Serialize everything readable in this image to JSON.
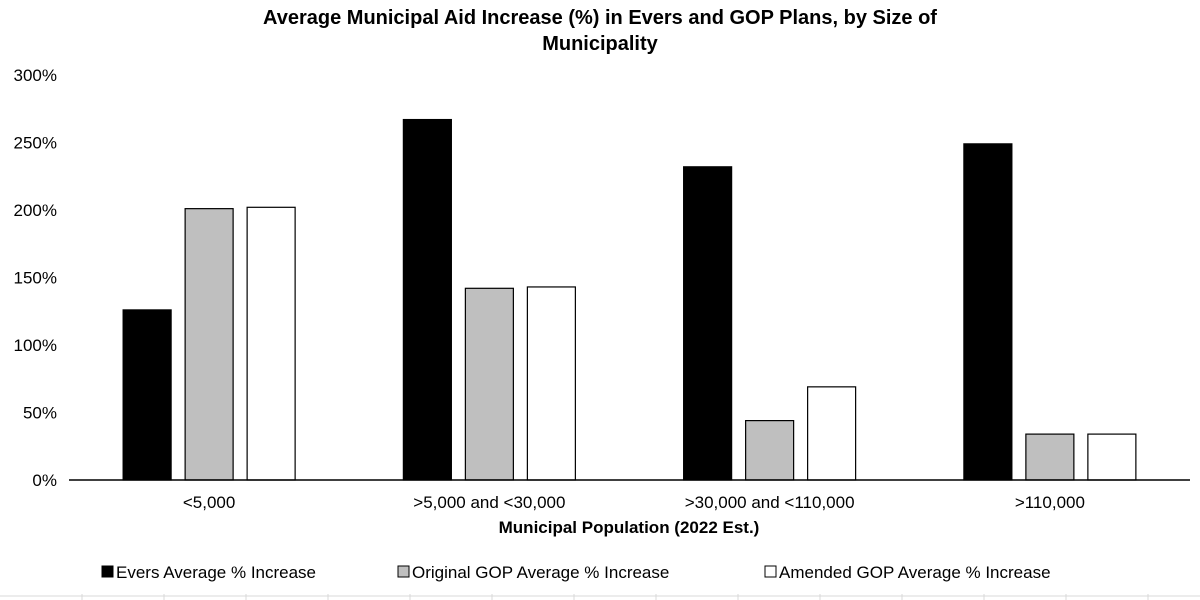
{
  "chart_data": {
    "type": "bar",
    "title_lines": [
      "Average Municipal Aid Increase (%) in Evers and GOP Plans, by Size of",
      "Municipality"
    ],
    "xlabel": "Municipal Population (2022 Est.)",
    "ylabel": "",
    "categories": [
      "<5,000",
      ">5,000 and <30,000",
      ">30,000 and <110,000",
      ">110,000"
    ],
    "ylim": [
      0,
      300
    ],
    "yticks": [
      0,
      50,
      100,
      150,
      200,
      250,
      300
    ],
    "ytick_labels": [
      "0%",
      "50%",
      "100%",
      "150%",
      "200%",
      "250%",
      "300%"
    ],
    "grid": false,
    "legend_position": "bottom",
    "series": [
      {
        "name": "Evers Average % Increase",
        "legend_label": "Evers Average % Increase",
        "color": "#000000",
        "values": [
          126,
          267,
          232,
          249
        ]
      },
      {
        "name": "Original GOP Average % Increase",
        "legend_label": "Original GOP Average % Increase",
        "color": "#bfbfbf",
        "values": [
          201,
          142,
          44,
          34
        ]
      },
      {
        "name": "Amended GOP Average % Increase",
        "legend_label": "Amended GOP Average % Increase",
        "color": "#ffffff",
        "values": [
          202,
          143,
          69,
          34
        ]
      }
    ]
  }
}
